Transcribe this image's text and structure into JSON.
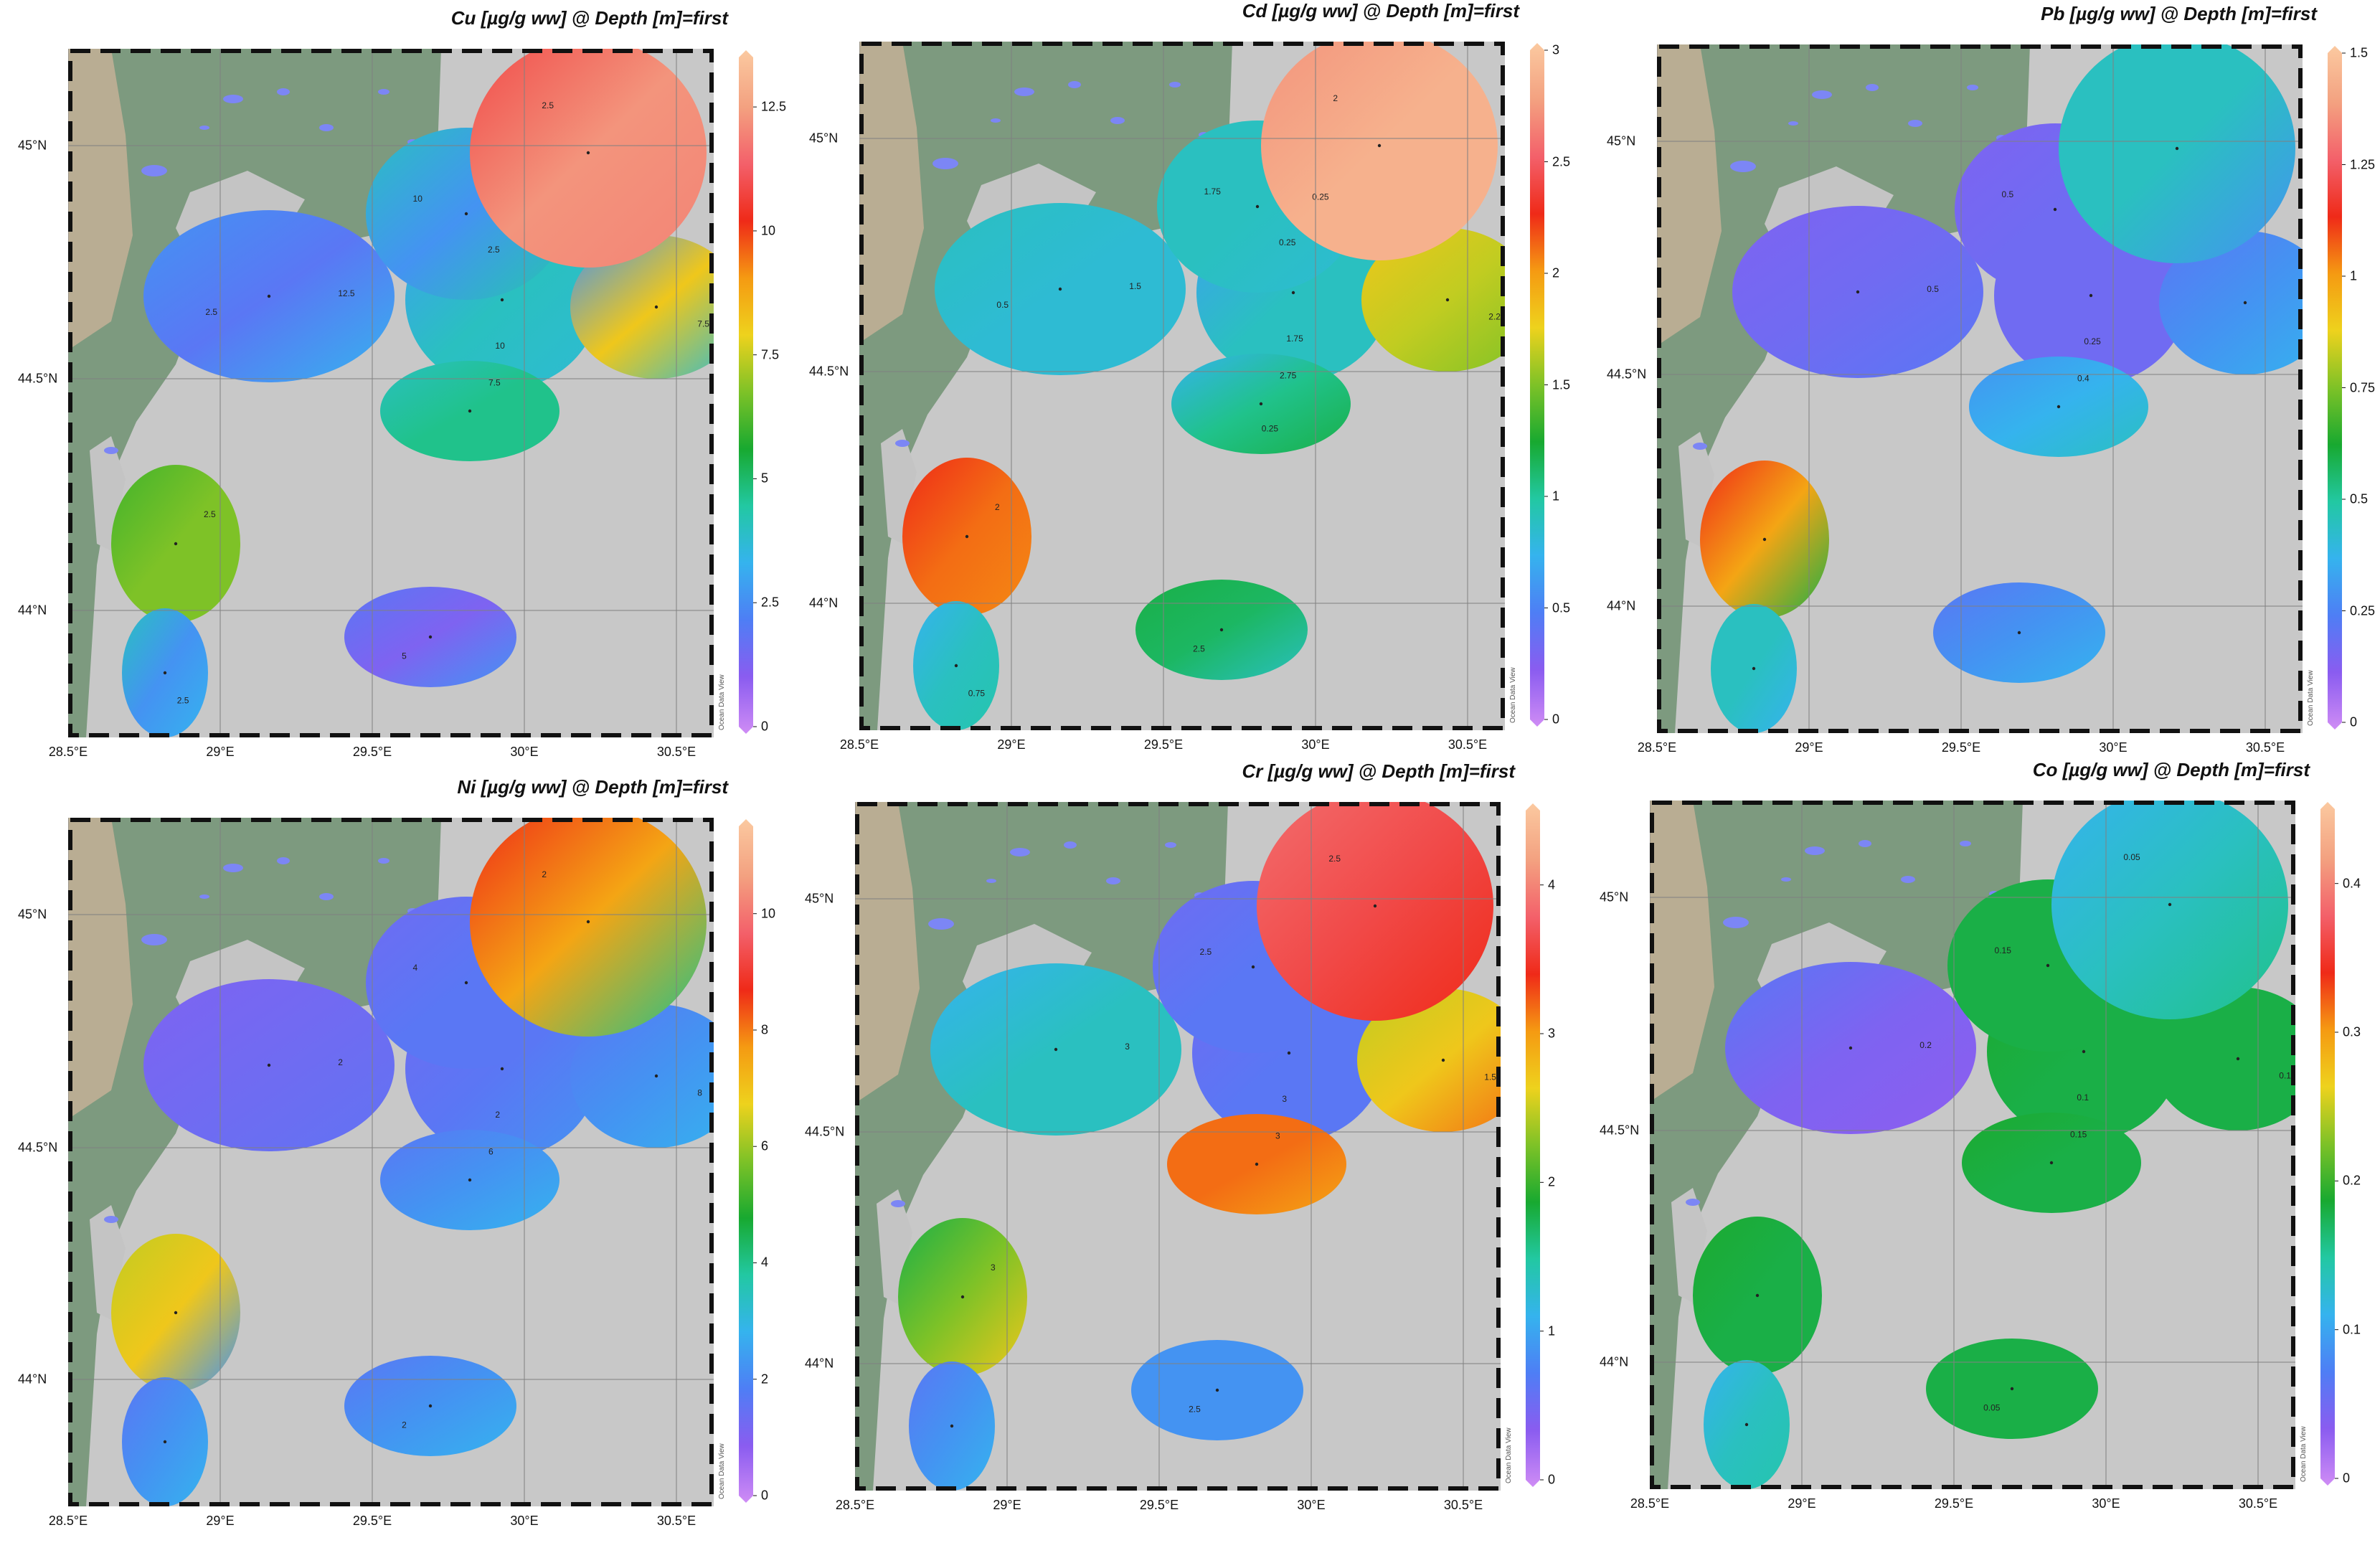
{
  "credit": "Ocean Data View",
  "lat_labels": [
    "45°N",
    "44.5°N",
    "44°N"
  ],
  "lon_labels": [
    "28.5°E",
    "29°E",
    "29.5°E",
    "30°E",
    "30.5°E"
  ],
  "colors": {
    "land": "#7d9a7f",
    "sea": "#c8c8c8",
    "lagoon": "#c4c4c4",
    "lake": "#7c86f5",
    "grid": "#808080",
    "frame": "#111111"
  },
  "colorscale": [
    "#cf8cf5",
    "#8a5cf0",
    "#4e7ef5",
    "#35b3ee",
    "#22c8a2",
    "#18a930",
    "#7ec227",
    "#eed21d",
    "#f59a12",
    "#ef2a18",
    "#f3606a",
    "#f3a180",
    "#fbc9a0"
  ],
  "panels": [
    {
      "title": "Cu [µg/g ww] @ Depth [m]=first",
      "param": "Cu",
      "ticks": [
        "0",
        "2.5",
        "5",
        "7.5",
        "10",
        "12.5"
      ],
      "max": 13.5,
      "contour_labels": [
        "12.5",
        "10",
        "10",
        "7.5",
        "7.5",
        "5",
        "2.5",
        "2.5",
        "2.5",
        "2.5",
        "2.5"
      ],
      "blobs": [
        {
          "c": 0.15,
          "v": [
            0.2,
            0.25
          ]
        },
        {
          "c": 0.3,
          "v": [
            0.22,
            0.28
          ]
        },
        {
          "c": 0.2,
          "v": [
            0.3,
            0.32
          ]
        },
        {
          "c": 0.35,
          "v": [
            0.3,
            0.35
          ]
        },
        {
          "c": 0.6,
          "v": [
            0.2,
            0.28
          ]
        },
        {
          "c": 0.1,
          "v": [
            0.15,
            0.2
          ]
        },
        {
          "c": 0.9,
          "v": [
            0.8,
            0.88
          ]
        },
        {
          "c": 0.5,
          "v": [
            0.45,
            0.5
          ]
        },
        {
          "c": 0.2,
          "v": [
            0.3,
            0.25
          ]
        }
      ]
    },
    {
      "title": "Cd [µg/g ww] @ Depth [m]=first",
      "param": "Cd",
      "ticks": [
        "0",
        "0.5",
        "1",
        "1.5",
        "2",
        "2.5",
        "3"
      ],
      "max": 3.0,
      "contour_labels": [
        "1.5",
        "1.75",
        "1.75",
        "2.75",
        "2.25",
        "2.5",
        "2",
        "2",
        "0.75",
        "0.5",
        "0.25",
        "0.25",
        "0.25"
      ],
      "blobs": [
        {
          "c": 0.28,
          "v": [
            0.3,
            0.28
          ]
        },
        {
          "c": 0.3,
          "v": [
            0.22,
            0.3
          ]
        },
        {
          "c": 0.3,
          "v": [
            0.3,
            0.28
          ]
        },
        {
          "c": 0.35,
          "v": [
            0.25,
            0.4
          ]
        },
        {
          "c": 0.55,
          "v": [
            0.6,
            0.5
          ]
        },
        {
          "c": 0.38,
          "v": [
            0.4,
            0.3
          ]
        },
        {
          "c": 0.95,
          "v": [
            0.9,
            0.95
          ]
        },
        {
          "c": 0.7,
          "v": [
            0.75,
            0.68
          ]
        },
        {
          "c": 0.3,
          "v": [
            0.25,
            0.32
          ]
        }
      ]
    },
    {
      "title": "Pb [µg/g ww] @ Depth [m]=first",
      "param": "Pb",
      "ticks": [
        "0",
        "0.25",
        "0.5",
        "0.75",
        "1",
        "1.25",
        "1.5"
      ],
      "max": 1.5,
      "contour_labels": [
        "0.5",
        "0.25",
        "0.5",
        "0.4"
      ],
      "blobs": [
        {
          "c": 0.12,
          "v": [
            0.1,
            0.15
          ]
        },
        {
          "c": 0.12,
          "v": [
            0.12,
            0.12
          ]
        },
        {
          "c": 0.12,
          "v": [
            0.1,
            0.12
          ]
        },
        {
          "c": 0.25,
          "v": [
            0.2,
            0.3
          ]
        },
        {
          "c": 0.2,
          "v": [
            0.15,
            0.25
          ]
        },
        {
          "c": 0.2,
          "v": [
            0.15,
            0.25
          ]
        },
        {
          "c": 0.3,
          "v": [
            0.3,
            0.2
          ]
        },
        {
          "c": 0.65,
          "v": [
            0.75,
            0.4
          ]
        },
        {
          "c": 0.3,
          "v": [
            0.3,
            0.25
          ]
        }
      ]
    },
    {
      "title": "Ni [µg/g ww] @ Depth [m]=first",
      "param": "Ni",
      "ticks": [
        "0",
        "2",
        "4",
        "6",
        "8",
        "10"
      ],
      "max": 11.5,
      "contour_labels": [
        "2",
        "2",
        "4",
        "6",
        "8",
        "2",
        "2"
      ],
      "blobs": [
        {
          "c": 0.12,
          "v": [
            0.1,
            0.14
          ]
        },
        {
          "c": 0.15,
          "v": [
            0.12,
            0.2
          ]
        },
        {
          "c": 0.15,
          "v": [
            0.12,
            0.15
          ]
        },
        {
          "c": 0.2,
          "v": [
            0.15,
            0.25
          ]
        },
        {
          "c": 0.2,
          "v": [
            0.15,
            0.25
          ]
        },
        {
          "c": 0.2,
          "v": [
            0.15,
            0.25
          ]
        },
        {
          "c": 0.65,
          "v": [
            0.75,
            0.35
          ]
        },
        {
          "c": 0.6,
          "v": [
            0.55,
            0.2
          ]
        },
        {
          "c": 0.2,
          "v": [
            0.15,
            0.25
          ]
        }
      ]
    },
    {
      "title": "Cr [µg/g ww] @ Depth [m]=first",
      "param": "Cr",
      "ticks": [
        "0",
        "1",
        "2",
        "3",
        "4"
      ],
      "max": 4.5,
      "contour_labels": [
        "3",
        "3",
        "2.5",
        "3",
        "1.5",
        "2.5",
        "2.5",
        "3"
      ],
      "blobs": [
        {
          "c": 0.3,
          "v": [
            0.25,
            0.3
          ]
        },
        {
          "c": 0.15,
          "v": [
            0.12,
            0.15
          ]
        },
        {
          "c": 0.15,
          "v": [
            0.12,
            0.15
          ]
        },
        {
          "c": 0.7,
          "v": [
            0.7,
            0.65
          ]
        },
        {
          "c": 0.6,
          "v": [
            0.55,
            0.7
          ]
        },
        {
          "c": 0.2,
          "v": [
            0.2,
            0.2
          ]
        },
        {
          "c": 0.8,
          "v": [
            0.85,
            0.75
          ]
        },
        {
          "c": 0.5,
          "v": [
            0.4,
            0.6
          ]
        },
        {
          "c": 0.2,
          "v": [
            0.15,
            0.25
          ]
        }
      ]
    },
    {
      "title": "Co [µg/g ww] @ Depth [m]=first",
      "param": "Co",
      "ticks": [
        "0",
        "0.1",
        "0.2",
        "0.3",
        "0.4"
      ],
      "max": 0.45,
      "contour_labels": [
        "0.2",
        "0.1",
        "0.15",
        "0.15",
        "0.1",
        "0.05",
        "0.05"
      ],
      "blobs": [
        {
          "c": 0.1,
          "v": [
            0.15,
            0.08
          ]
        },
        {
          "c": 0.4,
          "v": [
            0.42,
            0.4
          ]
        },
        {
          "c": 0.4,
          "v": [
            0.4,
            0.4
          ]
        },
        {
          "c": 0.4,
          "v": [
            0.42,
            0.4
          ]
        },
        {
          "c": 0.4,
          "v": [
            0.4,
            0.4
          ]
        },
        {
          "c": 0.4,
          "v": [
            0.4,
            0.4
          ]
        },
        {
          "c": 0.3,
          "v": [
            0.25,
            0.35
          ]
        },
        {
          "c": 0.4,
          "v": [
            0.42,
            0.4
          ]
        },
        {
          "c": 0.3,
          "v": [
            0.25,
            0.32
          ]
        }
      ]
    }
  ]
}
